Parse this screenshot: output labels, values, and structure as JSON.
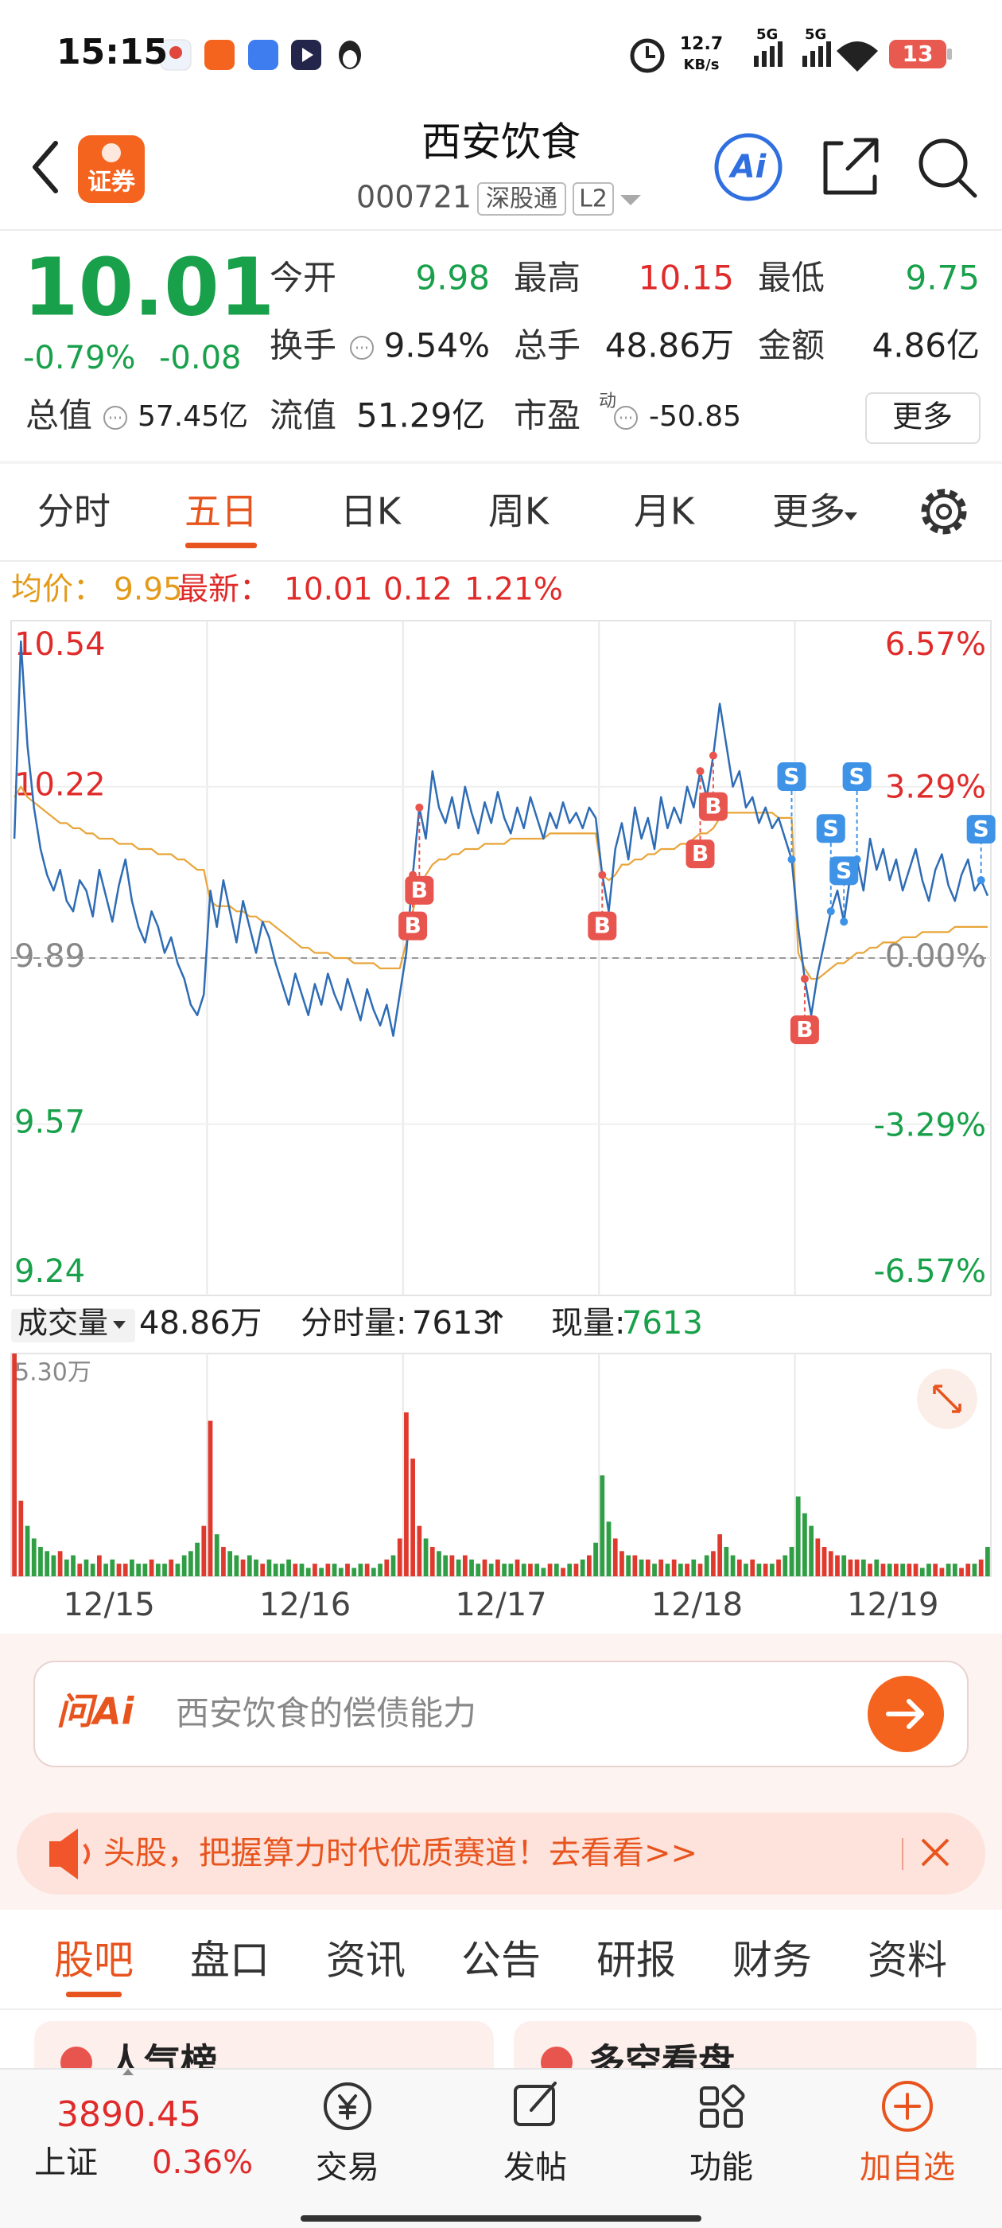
{
  "status_bar": {
    "time": "15:15",
    "network_speed": "12.7",
    "network_unit": "KB/s",
    "signal_1": "5G",
    "signal_2": "5G",
    "battery": "13"
  },
  "header": {
    "badge": "证券",
    "title": "西安饮食",
    "code": "000721",
    "tag_1": "深股通",
    "tag_2": "L2",
    "ai_button": "Ai"
  },
  "quote": {
    "price": "10.01",
    "change_pct": "-0.79%",
    "change": "-0.08",
    "fields": [
      {
        "label": "今开",
        "value": "9.98",
        "color": "#18a04a"
      },
      {
        "label": "最高",
        "value": "10.15",
        "color": "#e02b2b"
      },
      {
        "label": "最低",
        "value": "9.75",
        "color": "#18a04a"
      },
      {
        "label": "换手",
        "value": "9.54%"
      },
      {
        "label": "总手",
        "value": "48.86万"
      },
      {
        "label": "金额",
        "value": "4.86亿"
      },
      {
        "label": "总值",
        "value": "57.45亿"
      },
      {
        "label": "流值",
        "value": "51.29亿"
      },
      {
        "label": "市盈",
        "value": "-50.85"
      }
    ],
    "pe_sup": "动",
    "more_button": "更多"
  },
  "period_tabs": [
    "分时",
    "五日",
    "日K",
    "周K",
    "月K",
    "更多"
  ],
  "active_period_tab": 1,
  "chart_info": {
    "avg_label": "均价：",
    "avg_value": "9.95",
    "latest_label": "最新：",
    "latest_value": "10.01",
    "change": "0.12",
    "change_pct": "1.21%"
  },
  "chart_data": {
    "type": "line",
    "categories": [
      "12/15",
      "12/16",
      "12/17",
      "12/18",
      "12/19"
    ],
    "series": [
      {
        "color": "#2e6cb5",
        "values": [
          [
            10.12,
            10.5,
            10.3,
            10.18,
            10.1,
            10.05,
            10.02,
            10.06,
            10.0,
            9.98,
            10.04,
            10.02,
            9.97,
            10.06,
            10.01,
            9.96,
            10.03,
            10.08,
            10.0,
            9.95,
            9.92,
            9.98,
            9.95,
            9.9,
            9.93,
            9.88,
            9.85,
            9.8,
            9.78,
            9.82
          ],
          [
            10.02,
            9.95,
            10.04,
            9.98,
            9.92,
            10.0,
            9.95,
            9.9,
            9.96,
            9.93,
            9.88,
            9.84,
            9.8,
            9.86,
            9.82,
            9.78,
            9.84,
            9.8,
            9.86,
            9.82,
            9.79,
            9.85,
            9.81,
            9.77,
            9.83,
            9.79,
            9.76,
            9.8,
            9.74,
            9.82
          ],
          [
            9.9,
            10.05,
            10.18,
            10.12,
            10.25,
            10.18,
            10.15,
            10.2,
            10.14,
            10.22,
            10.17,
            10.13,
            10.19,
            10.15,
            10.21,
            10.16,
            10.13,
            10.18,
            10.14,
            10.2,
            10.16,
            10.12,
            10.17,
            10.14,
            10.19,
            10.15,
            10.17,
            10.14,
            10.18,
            10.16
          ],
          [
            10.05,
            9.98,
            10.1,
            10.15,
            10.08,
            10.18,
            10.12,
            10.16,
            10.1,
            10.2,
            10.14,
            10.18,
            10.15,
            10.22,
            10.18,
            10.25,
            10.2,
            10.28,
            10.38,
            10.3,
            10.22,
            10.25,
            10.18,
            10.2,
            10.15,
            10.18,
            10.14,
            10.16,
            10.12,
            10.08
          ],
          [
            9.95,
            9.85,
            9.78,
            9.86,
            9.92,
            9.98,
            10.02,
            9.96,
            10.05,
            10.08,
            10.02,
            10.12,
            10.06,
            10.1,
            10.04,
            10.08,
            10.02,
            10.06,
            10.1,
            10.04,
            10.0,
            10.06,
            10.09,
            10.03,
            10.0,
            10.05,
            10.08,
            10.02,
            10.04,
            10.01
          ]
        ]
      },
      {
        "color": "#e8a53a",
        "values": [
          [
            10.2,
            10.22,
            10.2,
            10.19,
            10.18,
            10.17,
            10.16,
            10.15,
            10.15,
            10.14,
            10.14,
            10.13,
            10.13,
            10.12,
            10.12,
            10.12,
            10.11,
            10.11,
            10.11,
            10.1,
            10.1,
            10.1,
            10.09,
            10.09,
            10.09,
            10.08,
            10.08,
            10.07,
            10.06,
            10.06
          ],
          [
            10.0,
            9.99,
            9.99,
            9.99,
            9.98,
            9.98,
            9.97,
            9.97,
            9.96,
            9.96,
            9.95,
            9.94,
            9.93,
            9.92,
            9.91,
            9.91,
            9.9,
            9.9,
            9.9,
            9.89,
            9.89,
            9.89,
            9.88,
            9.88,
            9.88,
            9.88,
            9.87,
            9.87,
            9.87,
            9.87
          ],
          [
            9.92,
            9.98,
            10.03,
            10.05,
            10.07,
            10.08,
            10.08,
            10.09,
            10.09,
            10.1,
            10.1,
            10.1,
            10.11,
            10.11,
            10.11,
            10.11,
            10.12,
            10.12,
            10.12,
            10.12,
            10.12,
            10.12,
            10.13,
            10.13,
            10.13,
            10.13,
            10.13,
            10.13,
            10.13,
            10.13
          ],
          [
            10.05,
            10.04,
            10.05,
            10.07,
            10.07,
            10.08,
            10.08,
            10.09,
            10.09,
            10.1,
            10.1,
            10.1,
            10.11,
            10.11,
            10.12,
            10.13,
            10.13,
            10.14,
            10.16,
            10.17,
            10.17,
            10.17,
            10.17,
            10.17,
            10.17,
            10.17,
            10.17,
            10.16,
            10.16,
            10.16
          ],
          [
            9.9,
            9.87,
            9.85,
            9.85,
            9.86,
            9.87,
            9.88,
            9.88,
            9.89,
            9.9,
            9.9,
            9.91,
            9.91,
            9.92,
            9.92,
            9.92,
            9.93,
            9.93,
            9.93,
            9.94,
            9.94,
            9.94,
            9.94,
            9.94,
            9.95,
            9.95,
            9.95,
            9.95,
            9.95,
            9.95
          ]
        ]
      }
    ],
    "ylim": [
      9.24,
      10.54
    ],
    "yticks": [
      10.54,
      10.22,
      9.89,
      9.57,
      9.24
    ],
    "y2lim": [
      -6.57,
      6.57
    ],
    "y2ticks": [
      {
        "value": 6.57,
        "label": "6.57%"
      },
      {
        "value": 3.29,
        "label": "3.29%"
      },
      {
        "value": 0,
        "label": "0.00%"
      },
      {
        "value": -3.29,
        "label": "-3.29%"
      },
      {
        "value": -6.57,
        "label": "-6.57%"
      }
    ],
    "prev_close": 9.89,
    "grid": true,
    "markers": [
      {
        "label": "B",
        "day": 2,
        "index": 1
      },
      {
        "label": "B",
        "day": 2,
        "index": 2
      },
      {
        "label": "B",
        "day": 3,
        "index": 0
      },
      {
        "label": "B",
        "day": 3,
        "index": 15
      },
      {
        "label": "B",
        "day": 3,
        "index": 17
      },
      {
        "label": "S",
        "day": 3,
        "index": 29
      },
      {
        "label": "B",
        "day": 4,
        "index": 1
      },
      {
        "label": "S",
        "day": 4,
        "index": 5
      },
      {
        "label": "S",
        "day": 4,
        "index": 7
      },
      {
        "label": "S",
        "day": 4,
        "index": 9
      },
      {
        "label": "S",
        "day": 4,
        "index": 28
      }
    ],
    "volume": {
      "title": "成交量",
      "total": "48.86万",
      "tick_volume_label": "分时量:",
      "tick_volume": "7613",
      "arrow": "↑",
      "current_label": "现量:",
      "current": "7613",
      "ylim": [
        0,
        5.3
      ],
      "yticks": [
        {
          "value": 5.3,
          "label": "5.30万"
        }
      ],
      "up_color": "#e03a2e",
      "down_color": "#2f9e44",
      "values": [
        [
          5.3,
          1.8,
          1.2,
          0.9,
          0.7,
          0.6,
          0.5,
          0.6,
          0.4,
          0.5,
          0.3,
          0.4,
          0.3,
          0.5,
          0.3,
          0.4,
          0.3,
          0.3,
          0.4,
          0.3,
          0.3,
          0.4,
          0.3,
          0.3,
          0.4,
          0.3,
          0.5,
          0.6,
          0.8,
          1.2
        ],
        [
          3.7,
          1.0,
          0.7,
          0.6,
          0.5,
          0.4,
          0.5,
          0.4,
          0.3,
          0.4,
          0.3,
          0.3,
          0.4,
          0.3,
          0.3,
          0.2,
          0.3,
          0.2,
          0.3,
          0.3,
          0.2,
          0.3,
          0.2,
          0.3,
          0.3,
          0.2,
          0.3,
          0.4,
          0.5,
          0.9
        ],
        [
          3.9,
          2.8,
          1.2,
          0.9,
          0.7,
          0.6,
          0.5,
          0.5,
          0.4,
          0.5,
          0.4,
          0.3,
          0.4,
          0.3,
          0.4,
          0.3,
          0.3,
          0.4,
          0.3,
          0.3,
          0.3,
          0.2,
          0.3,
          0.3,
          0.2,
          0.3,
          0.3,
          0.4,
          0.5,
          0.8
        ],
        [
          2.4,
          1.3,
          0.9,
          0.6,
          0.5,
          0.5,
          0.4,
          0.4,
          0.3,
          0.4,
          0.3,
          0.4,
          0.3,
          0.3,
          0.4,
          0.3,
          0.5,
          0.6,
          1.0,
          0.7,
          0.5,
          0.4,
          0.3,
          0.4,
          0.3,
          0.3,
          0.3,
          0.4,
          0.5,
          0.7
        ],
        [
          1.9,
          1.5,
          1.2,
          0.9,
          0.7,
          0.6,
          0.5,
          0.5,
          0.4,
          0.4,
          0.4,
          0.3,
          0.4,
          0.3,
          0.3,
          0.3,
          0.3,
          0.3,
          0.3,
          0.2,
          0.3,
          0.3,
          0.2,
          0.3,
          0.3,
          0.2,
          0.3,
          0.3,
          0.4,
          0.7
        ]
      ]
    }
  },
  "ask_ai": {
    "logo": "问Ai",
    "placeholder": "西安饮食的偿债能力"
  },
  "banner": {
    "text": "头股，把握算力时代优质赛道！去看看>>"
  },
  "content_tabs": [
    "股吧",
    "盘口",
    "资讯",
    "公告",
    "研报",
    "财务",
    "资料"
  ],
  "active_content_tab": 0,
  "cards": [
    "人气榜",
    "多空看盘"
  ],
  "bottom_nav": {
    "index_value": "3890.45",
    "index_name": "上证",
    "index_change": "0.36%",
    "items": [
      "交易",
      "发帖",
      "功能",
      "加自选"
    ]
  }
}
